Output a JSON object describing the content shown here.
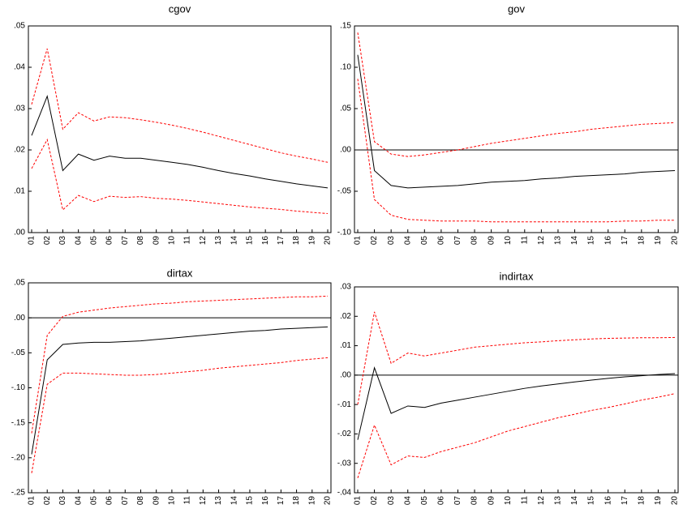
{
  "chart_data": [
    {
      "type": "line",
      "title": "cgov",
      "categories": [
        "01",
        "02",
        "03",
        "04",
        "05",
        "06",
        "07",
        "08",
        "09",
        "10",
        "11",
        "12",
        "13",
        "14",
        "15",
        "16",
        "17",
        "18",
        "19",
        "20"
      ],
      "series": [
        {
          "color": "#000000",
          "dash": false,
          "values": [
            0.0235,
            0.033,
            0.015,
            0.019,
            0.0175,
            0.0185,
            0.018,
            0.018,
            0.0175,
            0.017,
            0.0165,
            0.0158,
            0.015,
            0.0143,
            0.0137,
            0.013,
            0.0124,
            0.0118,
            0.0113,
            0.0108
          ]
        },
        {
          "color": "#ff0000",
          "dash": true,
          "values": [
            0.031,
            0.0445,
            0.025,
            0.029,
            0.027,
            0.028,
            0.0278,
            0.0273,
            0.0267,
            0.026,
            0.0252,
            0.0243,
            0.0233,
            0.0223,
            0.0213,
            0.0203,
            0.0193,
            0.0185,
            0.0178,
            0.017
          ]
        },
        {
          "color": "#ff0000",
          "dash": true,
          "values": [
            0.0155,
            0.0225,
            0.0055,
            0.009,
            0.0075,
            0.0088,
            0.0085,
            0.0087,
            0.0083,
            0.0081,
            0.0078,
            0.0074,
            0.007,
            0.0066,
            0.0062,
            0.0059,
            0.0056,
            0.0052,
            0.0049,
            0.0046
          ]
        }
      ],
      "ylim": [
        0,
        0.05
      ],
      "yticks": [
        {
          "value": 0,
          "label": ".00"
        },
        {
          "value": 0.01,
          "label": ".01"
        },
        {
          "value": 0.02,
          "label": ".02"
        },
        {
          "value": 0.03,
          "label": ".03"
        },
        {
          "value": 0.04,
          "label": ".04"
        },
        {
          "value": 0.05,
          "label": ".05"
        }
      ],
      "zero_line": false
    },
    {
      "type": "line",
      "title": "gov",
      "categories": [
        "01",
        "02",
        "03",
        "04",
        "05",
        "06",
        "07",
        "08",
        "09",
        "10",
        "11",
        "12",
        "13",
        "14",
        "15",
        "16",
        "17",
        "18",
        "19",
        "20"
      ],
      "series": [
        {
          "color": "#000000",
          "dash": false,
          "values": [
            0.115,
            -0.025,
            -0.043,
            -0.046,
            -0.045,
            -0.044,
            -0.043,
            -0.041,
            -0.039,
            -0.038,
            -0.037,
            -0.035,
            -0.034,
            -0.032,
            -0.031,
            -0.03,
            -0.029,
            -0.027,
            -0.026,
            -0.025
          ]
        },
        {
          "color": "#ff0000",
          "dash": true,
          "values": [
            0.142,
            0.01,
            -0.005,
            -0.008,
            -0.006,
            -0.003,
            0,
            0.004,
            0.008,
            0.011,
            0.014,
            0.017,
            0.02,
            0.022,
            0.025,
            0.027,
            0.029,
            0.031,
            0.032,
            0.033
          ]
        },
        {
          "color": "#ff0000",
          "dash": true,
          "values": [
            0.086,
            -0.06,
            -0.079,
            -0.084,
            -0.085,
            -0.086,
            -0.086,
            -0.086,
            -0.087,
            -0.087,
            -0.087,
            -0.087,
            -0.087,
            -0.087,
            -0.087,
            -0.087,
            -0.086,
            -0.086,
            -0.085,
            -0.085
          ]
        }
      ],
      "ylim": [
        -0.1,
        0.15
      ],
      "yticks": [
        {
          "value": -0.1,
          "label": "-.10"
        },
        {
          "value": -0.05,
          "label": "-.05"
        },
        {
          "value": 0,
          "label": ".00"
        },
        {
          "value": 0.05,
          "label": ".05"
        },
        {
          "value": 0.1,
          "label": ".10"
        },
        {
          "value": 0.15,
          "label": ".15"
        }
      ],
      "zero_line": true
    },
    {
      "type": "line",
      "title": "dirtax",
      "categories": [
        "01",
        "02",
        "03",
        "04",
        "05",
        "06",
        "07",
        "08",
        "09",
        "10",
        "11",
        "12",
        "13",
        "14",
        "15",
        "16",
        "17",
        "18",
        "19",
        "20"
      ],
      "series": [
        {
          "color": "#000000",
          "dash": false,
          "values": [
            -0.195,
            -0.06,
            -0.038,
            -0.036,
            -0.035,
            -0.035,
            -0.034,
            -0.033,
            -0.031,
            -0.029,
            -0.027,
            -0.025,
            -0.023,
            -0.021,
            -0.019,
            -0.018,
            -0.016,
            -0.015,
            -0.014,
            -0.013
          ]
        },
        {
          "color": "#ff0000",
          "dash": true,
          "values": [
            -0.165,
            -0.025,
            0.002,
            0.008,
            0.011,
            0.014,
            0.016,
            0.018,
            0.02,
            0.021,
            0.023,
            0.024,
            0.025,
            0.026,
            0.027,
            0.028,
            0.029,
            0.03,
            0.03,
            0.031
          ]
        },
        {
          "color": "#ff0000",
          "dash": true,
          "values": [
            -0.222,
            -0.095,
            -0.079,
            -0.079,
            -0.08,
            -0.081,
            -0.082,
            -0.082,
            -0.081,
            -0.079,
            -0.077,
            -0.075,
            -0.072,
            -0.07,
            -0.068,
            -0.066,
            -0.064,
            -0.061,
            -0.059,
            -0.057
          ]
        }
      ],
      "ylim": [
        -0.25,
        0.05
      ],
      "yticks": [
        {
          "value": -0.25,
          "label": "-.25"
        },
        {
          "value": -0.2,
          "label": "-.20"
        },
        {
          "value": -0.15,
          "label": "-.15"
        },
        {
          "value": -0.1,
          "label": "-.10"
        },
        {
          "value": -0.05,
          "label": "-.05"
        },
        {
          "value": 0,
          "label": ".00"
        },
        {
          "value": 0.05,
          "label": ".05"
        }
      ],
      "zero_line": true
    },
    {
      "type": "line",
      "title": "indirtax",
      "categories": [
        "01",
        "02",
        "03",
        "04",
        "05",
        "06",
        "07",
        "08",
        "09",
        "10",
        "11",
        "12",
        "13",
        "14",
        "15",
        "16",
        "17",
        "18",
        "19",
        "20"
      ],
      "series": [
        {
          "color": "#000000",
          "dash": false,
          "values": [
            -0.022,
            0.0025,
            -0.013,
            -0.0105,
            -0.011,
            -0.0095,
            -0.0085,
            -0.0075,
            -0.0065,
            -0.0055,
            -0.0045,
            -0.0037,
            -0.003,
            -0.0023,
            -0.0017,
            -0.0011,
            -0.0006,
            -0.0002,
            0.0002,
            0.0005
          ]
        },
        {
          "color": "#ff0000",
          "dash": true,
          "values": [
            -0.01,
            0.0215,
            0.004,
            0.0075,
            0.0065,
            0.0075,
            0.0085,
            0.0095,
            0.01,
            0.0105,
            0.011,
            0.0113,
            0.0117,
            0.012,
            0.0123,
            0.0125,
            0.0126,
            0.0127,
            0.0127,
            0.0128
          ]
        },
        {
          "color": "#ff0000",
          "dash": true,
          "values": [
            -0.035,
            -0.017,
            -0.0305,
            -0.0275,
            -0.028,
            -0.026,
            -0.0245,
            -0.023,
            -0.021,
            -0.019,
            -0.0175,
            -0.016,
            -0.0145,
            -0.0133,
            -0.012,
            -0.011,
            -0.0098,
            -0.0085,
            -0.0075,
            -0.0063
          ]
        }
      ],
      "ylim": [
        -0.04,
        0.03
      ],
      "yticks": [
        {
          "value": -0.04,
          "label": "-.04"
        },
        {
          "value": -0.03,
          "label": "-.03"
        },
        {
          "value": -0.02,
          "label": "-.02"
        },
        {
          "value": -0.01,
          "label": "-.01"
        },
        {
          "value": 0,
          "label": ".00"
        },
        {
          "value": 0.01,
          "label": ".01"
        },
        {
          "value": 0.02,
          "label": ".02"
        },
        {
          "value": 0.03,
          "label": ".03"
        }
      ],
      "zero_line": true
    }
  ]
}
